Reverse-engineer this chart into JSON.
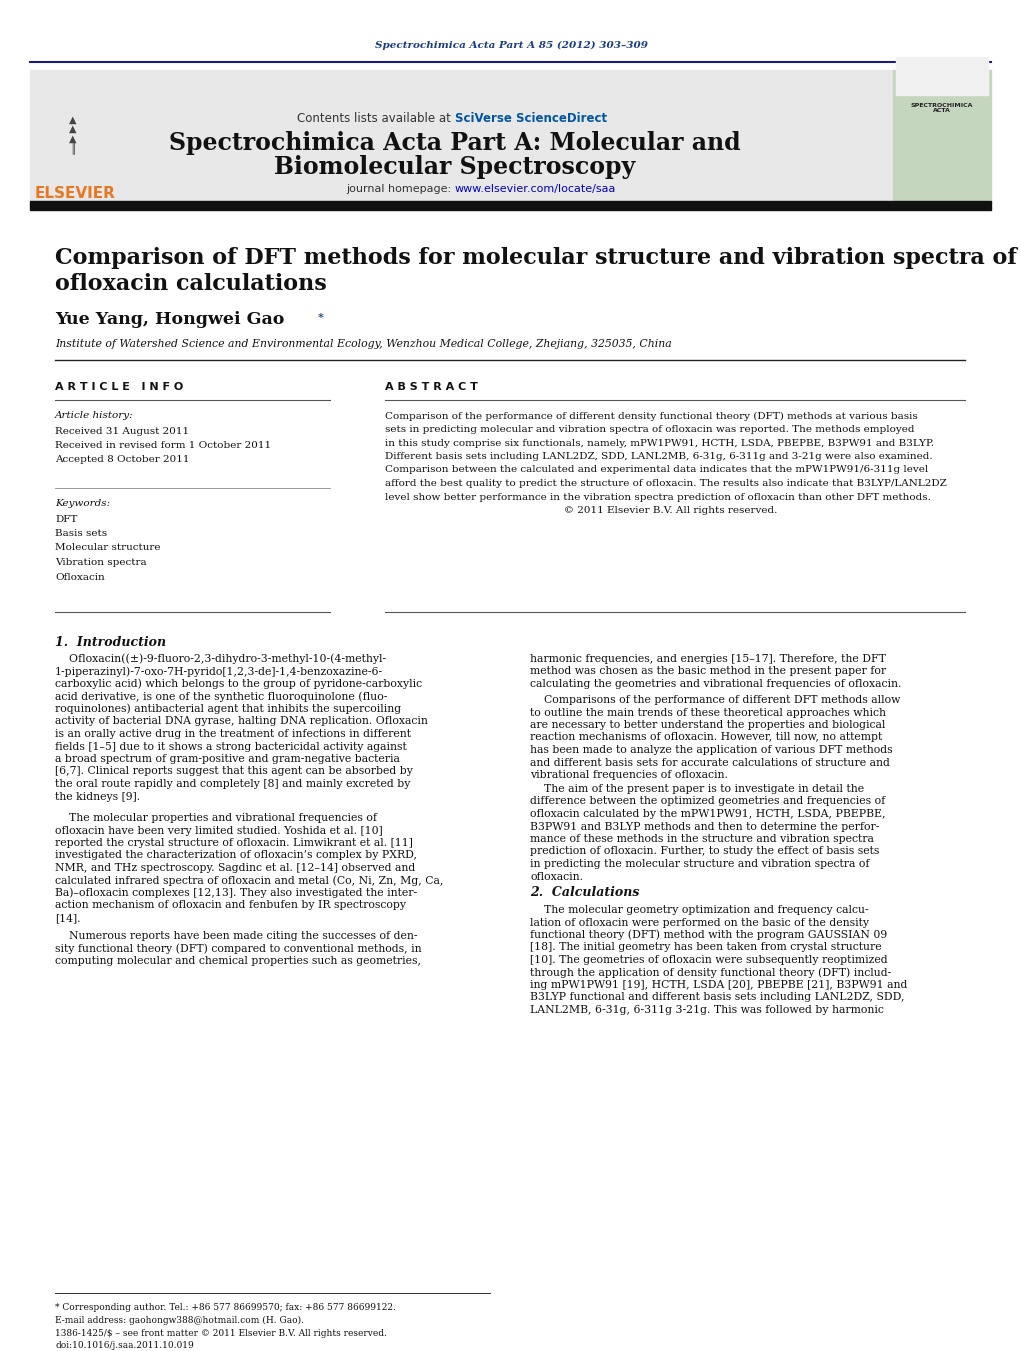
{
  "page_background": "#ffffff",
  "top_citation": "Spectrochimica Acta Part A 85 (2012) 303–309",
  "journal_header_bg": "#e8e8e8",
  "contents_text": "Contents lists available at ",
  "sciverse_text": "SciVerse ScienceDirect",
  "journal_title_line1": "Spectrochimica Acta Part A: Molecular and",
  "journal_title_line2": "Biomolecular Spectroscopy",
  "journal_homepage_text": "journal homepage: ",
  "journal_url": "www.elsevier.com/locate/saa",
  "divider_color": "#1a1a7a",
  "elsevier_color": "#e87722",
  "article_title_line1": "Comparison of DFT methods for molecular structure and vibration spectra of",
  "article_title_line2": "ofloxacin calculations",
  "authors_main": "Yue Yang, Hongwei Gao",
  "authors_star": "*",
  "affiliation": "Institute of Watershed Science and Environmental Ecology, Wenzhou Medical College, Zhejiang, 325035, China",
  "article_info_label": "A R T I C L E   I N F O",
  "abstract_label": "A B S T R A C T",
  "article_history_label": "Article history:",
  "received_date": "Received 31 August 2011",
  "revised_date": "Received in revised form 1 October 2011",
  "accepted_date": "Accepted 8 October 2011",
  "keywords_label": "Keywords:",
  "keywords": [
    "DFT",
    "Basis sets",
    "Molecular structure",
    "Vibration spectra",
    "Ofloxacin"
  ],
  "abstract_lines": [
    "Comparison of the performance of different density functional theory (DFT) methods at various basis",
    "sets in predicting molecular and vibration spectra of ofloxacin was reported. The methods employed",
    "in this study comprise six functionals, namely, mPW1PW91, HCTH, LSDA, PBEPBE, B3PW91 and B3LYP.",
    "Different basis sets including LANL2DZ, SDD, LANL2MB, 6-31g, 6-311g and 3-21g were also examined.",
    "Comparison between the calculated and experimental data indicates that the mPW1PW91/6-311g level",
    "afford the best quality to predict the structure of ofloxacin. The results also indicate that B3LYP/LANL2DZ",
    "level show better performance in the vibration spectra prediction of ofloxacin than other DFT methods.",
    "                                                       © 2011 Elsevier B.V. All rights reserved."
  ],
  "section1_title": "1.  Introduction",
  "intro1_lines": [
    "    Ofloxacin((±)-9-fluoro-2,3-dihydro-3-methyl-10-(4-methyl-",
    "1-piperazinyl)-7-oxo-7H-pyrido[1,2,3-de]-1,4-benzoxazine-6-",
    "carboxylic acid) which belongs to the group of pyridone-carboxylic",
    "acid derivative, is one of the synthetic fluoroquinolone (fluo-",
    "roquinolones) antibacterial agent that inhibits the supercoiling",
    "activity of bacterial DNA gyrase, halting DNA replication. Ofloxacin",
    "is an orally active drug in the treatment of infections in different",
    "fields [1–5] due to it shows a strong bactericidal activity against",
    "a broad spectrum of gram-positive and gram-negative bacteria",
    "[6,7]. Clinical reports suggest that this agent can be absorbed by",
    "the oral route rapidly and completely [8] and mainly excreted by",
    "the kidneys [9]."
  ],
  "intro2_lines": [
    "    The molecular properties and vibrational frequencies of",
    "ofloxacin have been very limited studied. Yoshida et al. [10]",
    "reported the crystal structure of ofloxacin. Limwikrant et al. [11]",
    "investigated the characterization of ofloxacin’s complex by PXRD,",
    "NMR, and THz spectroscopy. Sagdinc et al. [12–14] observed and",
    "calculated infrared spectra of ofloxacin and metal (Co, Ni, Zn, Mg, Ca,",
    "Ba)–ofloxacin complexes [12,13]. They also investigated the inter-",
    "action mechanism of ofloxacin and fenbufen by IR spectroscopy",
    "[14]."
  ],
  "intro3_lines": [
    "    Numerous reports have been made citing the successes of den-",
    "sity functional theory (DFT) compared to conventional methods, in",
    "computing molecular and chemical properties such as geometries,"
  ],
  "right_col1_lines": [
    "harmonic frequencies, and energies [15–17]. Therefore, the DFT",
    "method was chosen as the basic method in the present paper for",
    "calculating the geometries and vibrational frequencies of ofloxacin."
  ],
  "right_col2_lines": [
    "    Comparisons of the performance of different DFT methods allow",
    "to outline the main trends of these theoretical approaches which",
    "are necessary to better understand the properties and biological",
    "reaction mechanisms of ofloxacin. However, till now, no attempt",
    "has been made to analyze the application of various DFT methods",
    "and different basis sets for accurate calculations of structure and",
    "vibrational frequencies of ofloxacin."
  ],
  "right_col3_lines": [
    "    The aim of the present paper is to investigate in detail the",
    "difference between the optimized geometries and frequencies of",
    "ofloxacin calculated by the mPW1PW91, HCTH, LSDA, PBEPBE,",
    "B3PW91 and B3LYP methods and then to determine the perfor-",
    "mance of these methods in the structure and vibration spectra",
    "prediction of ofloxacin. Further, to study the effect of basis sets",
    "in predicting the molecular structure and vibration spectra of",
    "ofloxacin."
  ],
  "section2_title": "2.  Calculations",
  "section2_lines": [
    "    The molecular geometry optimization and frequency calcu-",
    "lation of ofloxacin were performed on the basic of the density",
    "functional theory (DFT) method with the program GAUSSIAN 09",
    "[18]. The initial geometry has been taken from crystal structure",
    "[10]. The geometries of ofloxacin were subsequently reoptimized",
    "through the application of density functional theory (DFT) includ-",
    "ing mPW1PW91 [19], HCTH, LSDA [20], PBEPBE [21], B3PW91 and",
    "B3LYP functional and different basis sets including LANL2DZ, SDD,",
    "LANL2MB, 6-31g, 6-311g 3-21g. This was followed by harmonic"
  ],
  "footnote1": "* Corresponding author. Tel.: +86 577 86699570; fax: +86 577 86699122.",
  "footnote2": "E-mail address: gaohongw388@hotmail.com (H. Gao).",
  "footnote3": "1386-1425/$ – see front matter © 2011 Elsevier B.V. All rights reserved.",
  "footnote4": "doi:10.1016/j.saa.2011.10.019",
  "link_color": "#0000cc",
  "sciverse_color": "#0055a5",
  "text_color": "#000000"
}
